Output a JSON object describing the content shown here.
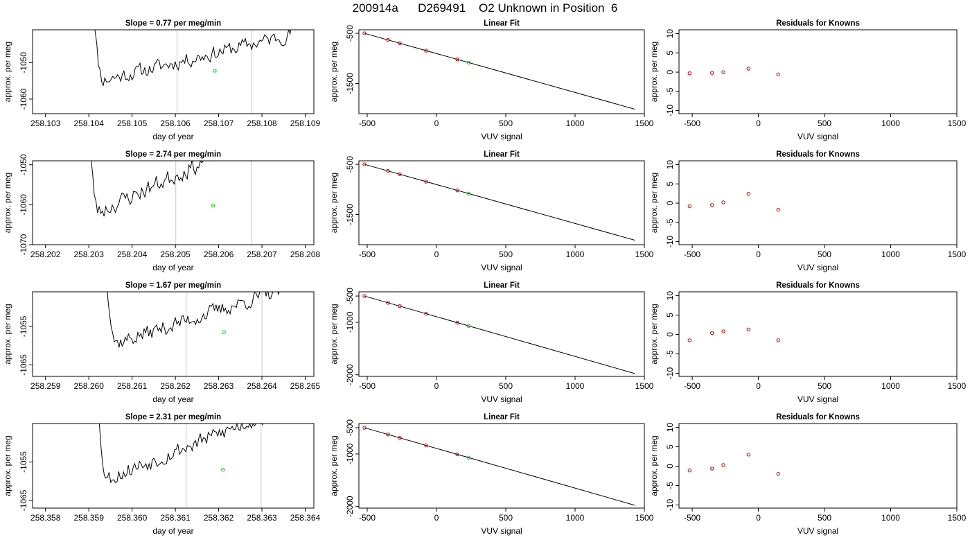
{
  "page_title": "200914a      D269491    O2 Unknown in Position  6",
  "colors": {
    "line": "#000000",
    "vline": "#c8c8c8",
    "known": "#cc0000",
    "unknown": "#00cc00"
  },
  "chart_data": [
    {
      "type": "line",
      "row": 0,
      "title": "Slope =  0.77  per meg/min",
      "xlabel": "day of year",
      "ylabel": "approx. per meg",
      "xlim": [
        258.1027,
        258.1092
      ],
      "ylim": [
        -1064,
        -1041
      ],
      "xticks": [
        "258.103",
        "258.104",
        "258.105",
        "258.106",
        "258.107",
        "258.108",
        "258.109"
      ],
      "yticks": [
        "-1050",
        "-1060"
      ],
      "vlines": [
        258.10604,
        258.10776
      ],
      "point": {
        "x": 258.10691,
        "y": -1052.2
      },
      "trace": {
        "x0": 258.104,
        "x1": 258.1088,
        "edge_x": [
          258.10405,
          258.10875
        ],
        "base": -1055.8,
        "slope_per_day": 2900,
        "amp": 1.7,
        "seed": 11
      }
    },
    {
      "type": "line",
      "row": 0,
      "title": "Linear Fit",
      "xlabel": "VUV signal",
      "ylabel": "approx. per meg",
      "xlim": [
        -560,
        1500
      ],
      "ylim": [
        -2100,
        -430
      ],
      "xticks": [
        "-500",
        "0",
        "500",
        "1000",
        "1500"
      ],
      "yticks": [
        "-500",
        "-1500"
      ],
      "fit_line": {
        "x": [
          -520,
          1430
        ],
        "y": [
          -500,
          -2010
        ]
      },
      "known_x": [
        -520,
        -350,
        -265,
        -75,
        150
      ],
      "unknown_x": 232
    },
    {
      "type": "scatter",
      "row": 0,
      "title": "Residuals for Knowns",
      "xlabel": "VUV signal",
      "ylabel": "approx. per meg",
      "xlim": [
        -600,
        1500
      ],
      "ylim": [
        -10.8,
        11
      ],
      "xticks": [
        "-500",
        "0",
        "500",
        "1000",
        "1500"
      ],
      "yticks": [
        "10",
        "5",
        "0",
        "-5",
        "-10"
      ],
      "x": [
        -520,
        -350,
        -265,
        -75,
        150
      ],
      "y": [
        -0.3,
        -0.2,
        0.0,
        0.9,
        -0.6
      ]
    },
    {
      "type": "line",
      "row": 1,
      "title": "Slope =  2.74  per meg/min",
      "xlabel": "day of year",
      "ylabel": "approx. per meg",
      "xlim": [
        258.2017,
        258.2082
      ],
      "ylim": [
        -1070,
        -1049
      ],
      "xticks": [
        "258.202",
        "258.203",
        "258.204",
        "258.205",
        "258.206",
        "258.207",
        "258.208"
      ],
      "yticks": [
        "-1050",
        "-1060",
        "-1070"
      ],
      "vlines": [
        258.20501,
        258.20675
      ],
      "point": {
        "x": 258.20587,
        "y": -1060.2
      },
      "trace": {
        "x0": 258.2029,
        "x1": 258.2078,
        "edge_x": [
          258.20295,
          258.20765
        ],
        "base": -1063.5,
        "slope_per_day": 5200,
        "amp": 1.8,
        "seed": 23
      }
    },
    {
      "type": "line",
      "row": 1,
      "title": "Linear Fit",
      "xlabel": "VUV signal",
      "ylabel": "approx. per meg",
      "xlim": [
        -560,
        1500
      ],
      "ylim": [
        -2100,
        -430
      ],
      "xticks": [
        "-500",
        "0",
        "500",
        "1000",
        "1500"
      ],
      "yticks": [
        "-500",
        "-1500"
      ],
      "fit_line": {
        "x": [
          -520,
          1430
        ],
        "y": [
          -500,
          -2010
        ]
      },
      "known_x": [
        -520,
        -350,
        -265,
        -75,
        150
      ],
      "unknown_x": 232
    },
    {
      "type": "scatter",
      "row": 1,
      "title": "Residuals for Knowns",
      "xlabel": "VUV signal",
      "ylabel": "approx. per meg",
      "xlim": [
        -600,
        1500
      ],
      "ylim": [
        -10.8,
        11
      ],
      "xticks": [
        "-500",
        "0",
        "500",
        "1000",
        "1500"
      ],
      "yticks": [
        "10",
        "5",
        "0",
        "-5",
        "-10"
      ],
      "x": [
        -520,
        -350,
        -265,
        -75,
        150
      ],
      "y": [
        -0.8,
        -0.5,
        0.2,
        2.4,
        -1.7
      ]
    },
    {
      "type": "line",
      "row": 2,
      "title": "Slope =  1.67  per meg/min",
      "xlabel": "day of year",
      "ylabel": "approx. per meg",
      "xlim": [
        258.2587,
        258.2652
      ],
      "ylim": [
        -1068,
        -1046
      ],
      "xticks": [
        "258.259",
        "258.260",
        "258.261",
        "258.262",
        "258.263",
        "258.264",
        "258.265"
      ],
      "yticks": [
        "-1055",
        "-1065"
      ],
      "vlines": [
        258.26225,
        258.264
      ],
      "point": {
        "x": 258.26312,
        "y": -1056.5
      },
      "trace": {
        "x0": 258.2603,
        "x1": 258.265,
        "edge_x": [
          258.26035,
          258.26495
        ],
        "base": -1060.5,
        "slope_per_day": 3600,
        "amp": 1.7,
        "seed": 37
      }
    },
    {
      "type": "line",
      "row": 2,
      "title": "Linear Fit",
      "xlabel": "VUV signal",
      "ylabel": "approx. per meg",
      "xlim": [
        -560,
        1500
      ],
      "ylim": [
        -2030,
        -420
      ],
      "xticks": [
        "-500",
        "0",
        "500",
        "1000",
        "1500"
      ],
      "yticks": [
        "-500",
        "-1000",
        "-2000"
      ],
      "fit_line": {
        "x": [
          -520,
          1430
        ],
        "y": [
          -500,
          -1975
        ]
      },
      "known_x": [
        -520,
        -350,
        -265,
        -75,
        150
      ],
      "unknown_x": 232
    },
    {
      "type": "scatter",
      "row": 2,
      "title": "Residuals for Knowns",
      "xlabel": "VUV signal",
      "ylabel": "approx. per meg",
      "xlim": [
        -600,
        1500
      ],
      "ylim": [
        -10.8,
        11
      ],
      "xticks": [
        "-500",
        "0",
        "500",
        "1000",
        "1500"
      ],
      "yticks": [
        "10",
        "5",
        "0",
        "-5",
        "-10"
      ],
      "x": [
        -520,
        -350,
        -265,
        -75,
        150
      ],
      "y": [
        -1.5,
        0.4,
        0.8,
        1.3,
        -1.5
      ]
    },
    {
      "type": "line",
      "row": 3,
      "title": "Slope =  2.31  per meg/min",
      "xlabel": "day of year",
      "ylabel": "approx. per meg",
      "xlim": [
        258.3577,
        258.3642
      ],
      "ylim": [
        -1067,
        -1045
      ],
      "xticks": [
        "258.358",
        "258.359",
        "258.360",
        "258.361",
        "258.362",
        "258.363",
        "258.364"
      ],
      "yticks": [
        "-1055",
        "-1065"
      ],
      "vlines": [
        258.36125,
        258.36298
      ],
      "point": {
        "x": 258.3621,
        "y": -1057.0
      },
      "trace": {
        "x0": 258.3591,
        "x1": 258.3639,
        "edge_x": [
          258.35915,
          258.36385
        ],
        "base": -1060.8,
        "slope_per_day": 4500,
        "amp": 1.8,
        "seed": 53
      }
    },
    {
      "type": "line",
      "row": 3,
      "title": "Linear Fit",
      "xlabel": "VUV signal",
      "ylabel": "approx. per meg",
      "xlim": [
        -560,
        1500
      ],
      "ylim": [
        -2030,
        -420
      ],
      "xticks": [
        "-500",
        "0",
        "500",
        "1000",
        "1500"
      ],
      "yticks": [
        "-500",
        "-1000",
        "-2000"
      ],
      "fit_line": {
        "x": [
          -520,
          1430
        ],
        "y": [
          -500,
          -1975
        ]
      },
      "known_x": [
        -520,
        -350,
        -265,
        -75,
        150
      ],
      "unknown_x": 232
    },
    {
      "type": "scatter",
      "row": 3,
      "title": "Residuals for Knowns",
      "xlabel": "VUV signal",
      "ylabel": "approx. per meg",
      "xlim": [
        -600,
        1500
      ],
      "ylim": [
        -10.8,
        11
      ],
      "xticks": [
        "-500",
        "0",
        "500",
        "1000",
        "1500"
      ],
      "yticks": [
        "10",
        "5",
        "0",
        "-5",
        "-10"
      ],
      "x": [
        -520,
        -350,
        -265,
        -75,
        150
      ],
      "y": [
        -1.1,
        -0.6,
        0.3,
        3.0,
        -2.0
      ]
    }
  ]
}
